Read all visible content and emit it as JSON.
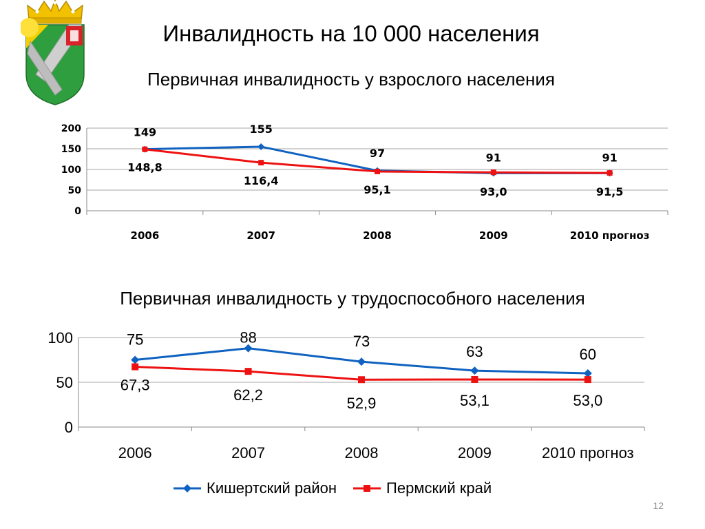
{
  "slide": {
    "title": "Инвалидность на 10 000 населения",
    "page_number": "12"
  },
  "legend": {
    "items": [
      {
        "label": "Кишертский район",
        "color": "#0F62C0",
        "marker": "diamond"
      },
      {
        "label": "Пермский край",
        "color": "#EE1111",
        "marker": "square"
      }
    ]
  },
  "chart_data": [
    {
      "type": "line",
      "title": "Первичная инвалидность у взрослого населения",
      "categories": [
        "2006",
        "2007",
        "2008",
        "2009",
        "2010 прогноз"
      ],
      "ylim": [
        0,
        200
      ],
      "yticks": [
        0,
        50,
        100,
        150,
        200
      ],
      "grid": true,
      "legend": "bottom",
      "series": [
        {
          "name": "Кишертский район",
          "color": "#0F62C0",
          "values": [
            149,
            155,
            97,
            91,
            91
          ],
          "labels": [
            "149",
            "155",
            "97",
            "91",
            "91"
          ]
        },
        {
          "name": "Пермский край",
          "color": "#EE1111",
          "values": [
            148.8,
            116.4,
            95.1,
            93.0,
            91.5
          ],
          "labels": [
            "148,8",
            "116,4",
            "95,1",
            "93,0",
            "91,5"
          ]
        }
      ]
    },
    {
      "type": "line",
      "title": "Первичная инвалидность у трудоспособного населения",
      "categories": [
        "2006",
        "2007",
        "2008",
        "2009",
        "2010 прогноз"
      ],
      "ylim": [
        0,
        100
      ],
      "yticks": [
        0,
        50,
        100
      ],
      "grid": true,
      "legend": "bottom",
      "series": [
        {
          "name": "Кишертский район",
          "color": "#0F62C0",
          "values": [
            75,
            88,
            73,
            63,
            60
          ],
          "labels": [
            "75",
            "88",
            "73",
            "63",
            "60"
          ]
        },
        {
          "name": "Пермский край",
          "color": "#EE1111",
          "values": [
            67.3,
            62.2,
            52.9,
            53.1,
            53.0
          ],
          "labels": [
            "67,3",
            "62,2",
            "52,9",
            "53,1",
            "53,0"
          ]
        }
      ]
    }
  ]
}
